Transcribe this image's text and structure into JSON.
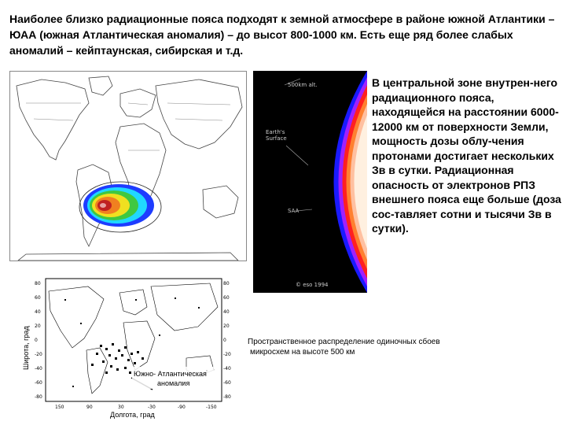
{
  "intro_text": "Наиболее близко радиационные пояса подходят к земной атмосфере в районе южной Атлантики – ЮАА (южная Атлантическая аномалия) – до высот 800-1000 км. Есть еще ряд более слабых аномалий – кейптаунская, сибирская и т.д.",
  "side_text": "В центральной зоне внутрен-него радиационного пояса, находящейся на расстоянии 6000-12000 км от поверхности Земли, мощность дозы облу-чения протонами достигает нескольких Зв в сутки. Радиационная опасность от электронов РПЗ внешнего пояса еще больше (доза сос-тавляет сотни и тысячи Зв в сутки).",
  "saa_figure": {
    "label_altitude": "500km alt.",
    "label_surface_1": "Earth's",
    "label_surface_2": "Surface",
    "label_saa": "SAA",
    "label_copyright": "© eso 1994"
  },
  "sensitivity_map": {
    "y_axis_label": "Широта, град",
    "x_axis_label": "Долгота, град",
    "annotation_1": "Южно- Атлантическая",
    "annotation_2": "аномалия",
    "y_ticks": [
      "80",
      "60",
      "40",
      "20",
      "0",
      "-20",
      "-40",
      "-60",
      "-80"
    ],
    "x_ticks": [
      "150",
      "90",
      "30",
      "-30",
      "-90",
      "-150"
    ]
  },
  "caption_line_1": "Пространственное распределение одиночных сбоев",
  "caption_line_2": "микросхем на высоте 500 км",
  "colors": {
    "heat_outer": "#1e3cff",
    "heat_mid": "#20d8ff",
    "heat_green": "#40c840",
    "heat_yellow": "#f0e020",
    "heat_orange": "#f08020",
    "heat_core": "#c02020"
  }
}
